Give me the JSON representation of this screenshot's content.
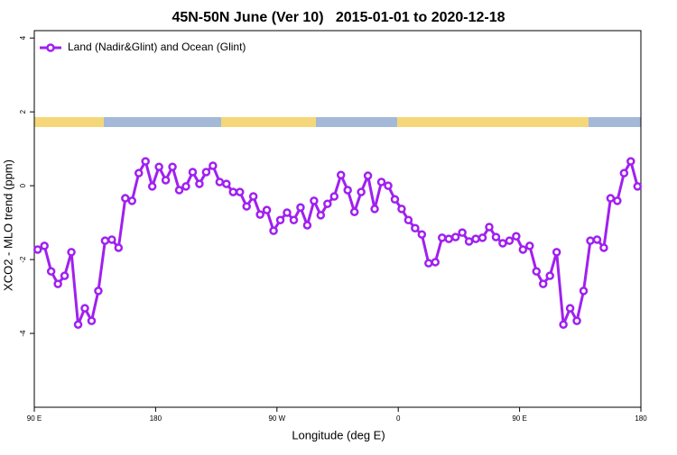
{
  "chart_data": {
    "type": "line",
    "title": "45N-50N June (Ver 10)   2015-01-01 to 2020-12-18",
    "x_label": "Longitude (deg E)",
    "y_label": "XCO2 - MLO trend (ppm)",
    "xlim": [
      90,
      540
    ],
    "xticks": [
      {
        "value": 90,
        "label": "90 E"
      },
      180,
      {
        "value": 270,
        "label": "90 W"
      },
      {
        "value": 360,
        "label": "0"
      },
      {
        "value": 450,
        "label": "90 E"
      },
      {
        "value": 540,
        "label": "180"
      }
    ],
    "ylim": [
      -6,
      4.2
    ],
    "yticks": [
      -4,
      -2,
      0,
      2,
      4
    ],
    "legend": "top-left",
    "x": [
      92.5,
      97.5,
      102.5,
      107.5,
      112.5,
      117.5,
      122.5,
      127.5,
      132.5,
      137.5,
      142.5,
      147.5,
      152.5,
      157.5,
      162.5,
      167.5,
      172.5,
      177.5,
      182.5,
      187.5,
      192.5,
      197.5,
      202.5,
      207.5,
      212.5,
      217.5,
      222.5,
      227.5,
      232.5,
      237.5,
      242.5,
      247.5,
      252.5,
      257.5,
      262.5,
      267.5,
      272.5,
      277.5,
      282.5,
      287.5,
      292.5,
      297.5,
      302.5,
      307.5,
      312.5,
      317.5,
      322.5,
      327.5,
      332.5,
      337.5,
      342.5,
      347.5,
      352.5,
      357.5,
      362.5,
      367.5,
      372.5,
      377.5,
      382.5,
      387.5,
      392.5,
      397.5,
      402.5,
      407.5,
      412.5,
      417.5,
      422.5,
      427.5,
      432.5,
      437.5,
      442.5,
      447.5,
      452.5,
      457.5,
      462.5,
      467.5,
      472.5,
      477.5,
      482.5,
      487.5,
      492.5,
      497.5,
      502.5,
      507.5,
      512.5,
      517.5,
      522.5,
      527.5,
      532.5,
      537.5
    ],
    "series": [
      {
        "name": "Land (Nadir&Glint) and Ocean (Glint)",
        "color": "#a020f0",
        "values": [
          -1.73,
          -1.63,
          -2.32,
          -2.66,
          -2.44,
          -1.8,
          -3.76,
          -3.32,
          -3.66,
          -2.85,
          -1.49,
          -1.46,
          -1.68,
          -0.34,
          -0.41,
          0.34,
          0.66,
          -0.02,
          0.51,
          0.15,
          0.51,
          -0.12,
          -0.02,
          0.37,
          0.05,
          0.37,
          0.54,
          0.1,
          0.05,
          -0.17,
          -0.17,
          -0.56,
          -0.29,
          -0.78,
          -0.66,
          -1.22,
          -0.93,
          -0.73,
          -0.93,
          -0.59,
          -1.07,
          -0.41,
          -0.8,
          -0.49,
          -0.29,
          0.29,
          -0.12,
          -0.71,
          -0.17,
          0.27,
          -0.63,
          0.1,
          0.0,
          -0.37,
          -0.63,
          -0.93,
          -1.15,
          -1.32,
          -2.1,
          -2.07,
          -1.41,
          -1.44,
          -1.39,
          -1.27,
          -1.51,
          -1.44,
          -1.41,
          -1.12,
          -1.39,
          -1.56,
          -1.49,
          -1.37,
          -1.73,
          -1.63,
          -2.32,
          -2.66,
          -2.44,
          -1.8,
          -3.76,
          -3.32,
          -3.66,
          -2.85,
          -1.49,
          -1.46,
          -1.68,
          -0.34,
          -0.41,
          0.34,
          0.66,
          -0.02
        ]
      }
    ]
  }
}
